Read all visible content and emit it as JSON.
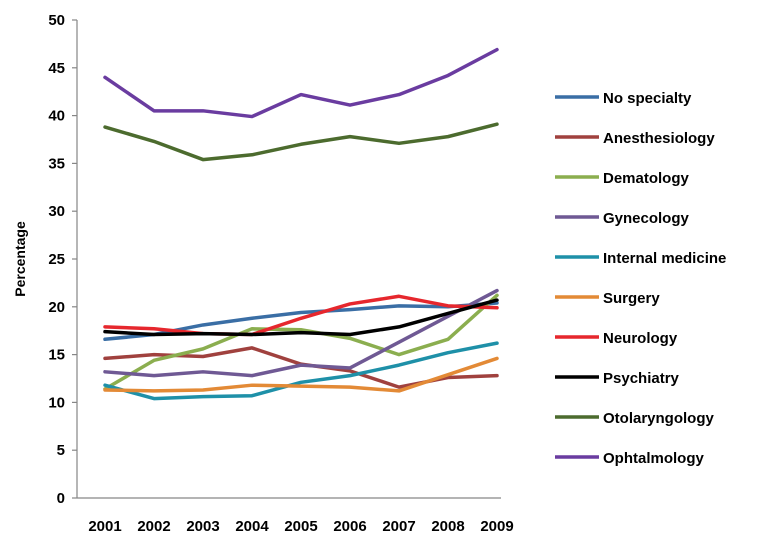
{
  "chart_data": {
    "type": "line",
    "xlabel": "",
    "ylabel": "Percentage",
    "ylim": [
      0,
      50
    ],
    "yticks": [
      0,
      5,
      10,
      15,
      20,
      25,
      30,
      35,
      40,
      45,
      50
    ],
    "x": [
      "2001",
      "2002",
      "2003",
      "2004",
      "2005",
      "2006",
      "2007",
      "2008",
      "2009"
    ],
    "grid": false,
    "legend_position": "right",
    "series": [
      {
        "name": "No specialty",
        "color": "#3A6EA5",
        "values": [
          16.6,
          17.1,
          18.1,
          18.8,
          19.4,
          19.7,
          20.1,
          20.0,
          20.4
        ]
      },
      {
        "name": "Anesthesiology",
        "color": "#A0413E",
        "values": [
          14.6,
          15.0,
          14.8,
          15.7,
          14.0,
          13.3,
          11.6,
          12.6,
          12.8
        ]
      },
      {
        "name": "Dematology",
        "color": "#8BAE4F",
        "values": [
          11.4,
          14.4,
          15.6,
          17.7,
          17.6,
          16.7,
          15.0,
          16.6,
          21.2
        ]
      },
      {
        "name": "Gynecology",
        "color": "#6F5994",
        "values": [
          13.2,
          12.8,
          13.2,
          12.8,
          13.9,
          13.6,
          16.3,
          19.0,
          21.7
        ]
      },
      {
        "name": "Internal medicine",
        "color": "#1E90A8",
        "values": [
          11.8,
          10.4,
          10.6,
          10.7,
          12.1,
          12.8,
          13.9,
          15.2,
          16.2
        ]
      },
      {
        "name": "Surgery",
        "color": "#E38A36",
        "values": [
          11.3,
          11.2,
          11.3,
          11.8,
          11.7,
          11.6,
          11.2,
          12.9,
          14.6
        ]
      },
      {
        "name": "Neurology",
        "color": "#E6272D",
        "values": [
          17.9,
          17.7,
          17.2,
          17.1,
          18.8,
          20.3,
          21.1,
          20.1,
          19.9
        ]
      },
      {
        "name": "Psychiatry",
        "color": "#000000",
        "values": [
          17.4,
          17.1,
          17.2,
          17.1,
          17.3,
          17.1,
          17.9,
          19.3,
          20.7
        ]
      },
      {
        "name": "Otolaryngology",
        "color": "#4C6B2E",
        "values": [
          38.8,
          37.3,
          35.4,
          35.9,
          37.0,
          37.8,
          37.1,
          37.8,
          39.1
        ]
      },
      {
        "name": "Ophtalmology",
        "color": "#6A3CA0",
        "values": [
          44.0,
          40.5,
          40.5,
          39.9,
          42.2,
          41.1,
          42.2,
          44.2,
          46.9
        ]
      }
    ]
  }
}
